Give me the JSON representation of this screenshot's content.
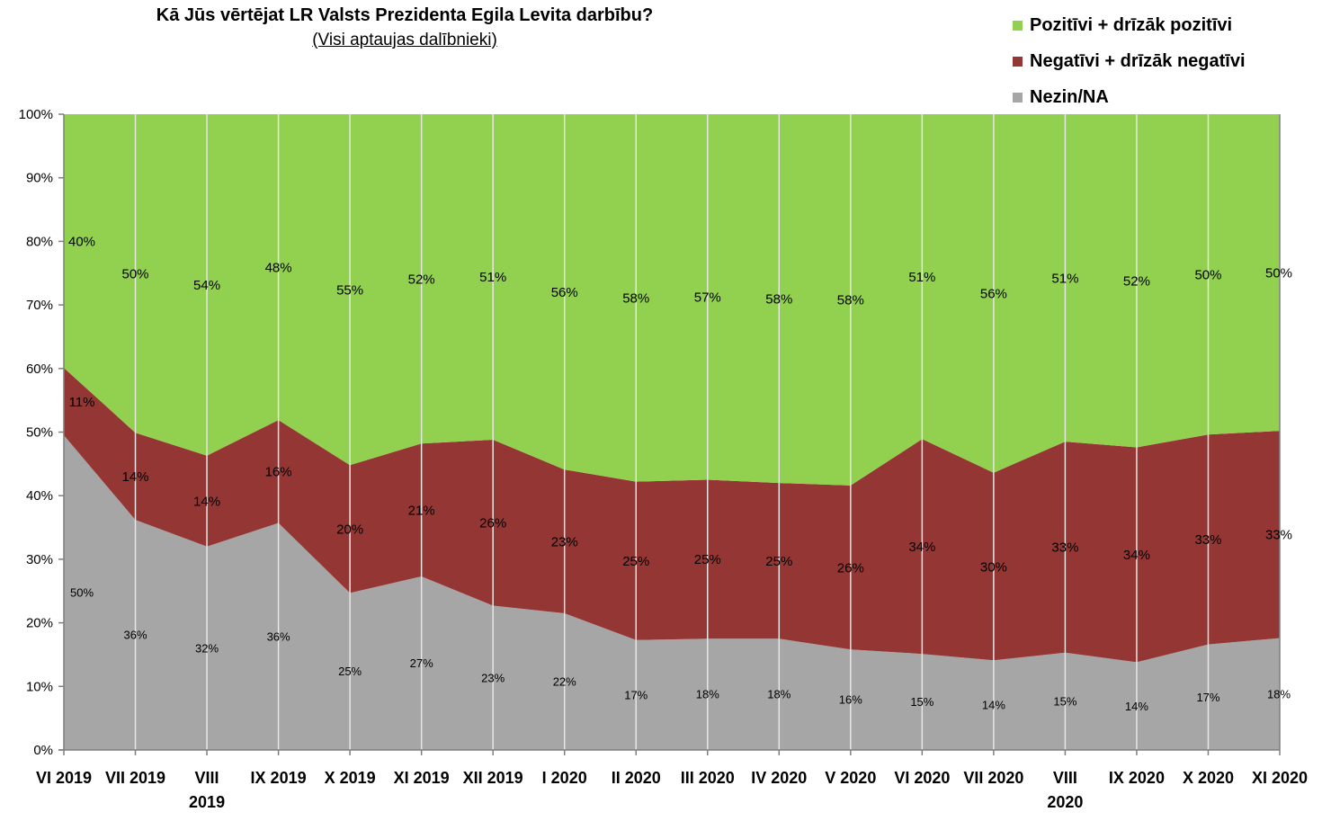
{
  "chart_data": {
    "type": "area",
    "title": "Kā Jūs vērtējat LR Valsts Prezidenta Egila Levita darbību?",
    "subtitle": "(Visi aptaujas dalībnieki)",
    "stacked": true,
    "categories": [
      "VI 2019",
      "VII 2019",
      "VIII 2019",
      "IX 2019",
      "X 2019",
      "XI 2019",
      "XII 2019",
      "I 2020",
      "II 2020",
      "III 2020",
      "IV 2020",
      "V 2020",
      "VI 2020",
      "VII 2020",
      "VIII 2020",
      "IX 2020",
      "X 2020",
      "XI 2020"
    ],
    "category_lines": [
      [
        "VI 2019"
      ],
      [
        "VII 2019"
      ],
      [
        "VIII",
        "2019"
      ],
      [
        "IX 2019"
      ],
      [
        "X 2019"
      ],
      [
        "XI 2019"
      ],
      [
        "XII 2019"
      ],
      [
        "I 2020"
      ],
      [
        "II 2020"
      ],
      [
        "III 2020"
      ],
      [
        "IV 2020"
      ],
      [
        "V 2020"
      ],
      [
        "VI 2020"
      ],
      [
        "VII 2020"
      ],
      [
        "VIII",
        "2020"
      ],
      [
        "IX 2020"
      ],
      [
        "X 2020"
      ],
      [
        "XI 2020"
      ]
    ],
    "series": [
      {
        "name": "Nezin/NA",
        "color": "#a6a6a6",
        "values": [
          49.5,
          36.2,
          32.0,
          35.7,
          24.7,
          27.3,
          22.7,
          21.5,
          17.3,
          17.5,
          17.5,
          15.8,
          15.1,
          14.1,
          15.3,
          13.8,
          16.6,
          17.6
        ],
        "labels": [
          "50%",
          "36%",
          "32%",
          "36%",
          "25%",
          "27%",
          "23%",
          "22%",
          "17%",
          "18%",
          "18%",
          "16%",
          "15%",
          "14%",
          "15%",
          "14%",
          "17%",
          "18%"
        ]
      },
      {
        "name": "Negatīvi + drīzāk negatīvi",
        "color": "#943634",
        "values": [
          10.6,
          13.7,
          14.3,
          16.2,
          20.1,
          20.9,
          26.1,
          22.6,
          24.9,
          25.0,
          24.5,
          25.8,
          33.8,
          29.5,
          33.2,
          33.8,
          33.0,
          32.6
        ],
        "labels": [
          "11%",
          "14%",
          "14%",
          "16%",
          "20%",
          "21%",
          "26%",
          "23%",
          "25%",
          "25%",
          "25%",
          "26%",
          "34%",
          "30%",
          "33%",
          "34%",
          "33%",
          "33%"
        ]
      },
      {
        "name": "Pozitīvi + drīzāk pozitīvi",
        "color": "#92d050",
        "values": [
          39.9,
          50.1,
          53.7,
          48.1,
          55.2,
          51.8,
          51.2,
          55.9,
          57.8,
          57.5,
          58.0,
          58.4,
          51.1,
          56.4,
          51.5,
          52.4,
          50.4,
          49.8
        ],
        "labels": [
          "40%",
          "50%",
          "54%",
          "48%",
          "55%",
          "52%",
          "51%",
          "56%",
          "58%",
          "57%",
          "58%",
          "58%",
          "51%",
          "56%",
          "51%",
          "52%",
          "50%",
          "50%"
        ]
      }
    ],
    "legend_order": [
      "Pozitīvi + drīzāk pozitīvi",
      "Negatīvi + drīzāk negatīvi",
      "Nezin/NA"
    ],
    "legend_position": "top-right",
    "yticks": [
      "0%",
      "10%",
      "20%",
      "30%",
      "40%",
      "50%",
      "60%",
      "70%",
      "80%",
      "90%",
      "100%"
    ],
    "ylim": [
      0,
      100
    ],
    "vertical_gridlines": true
  }
}
